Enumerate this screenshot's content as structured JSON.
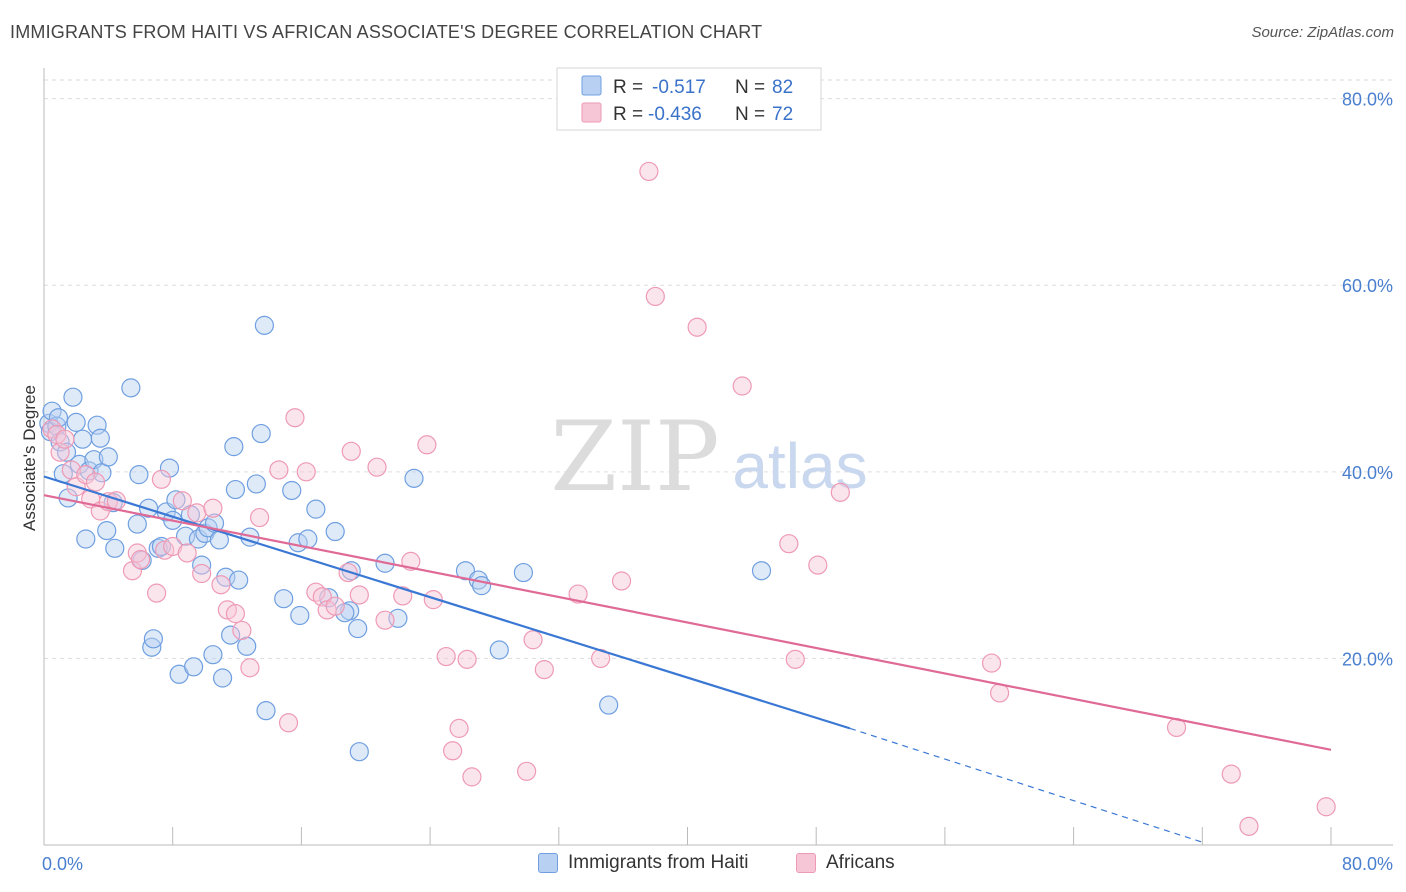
{
  "header": {
    "title": "IMMIGRANTS FROM HAITI VS AFRICAN ASSOCIATE'S DEGREE CORRELATION CHART",
    "source": "Source: ZipAtlas.com"
  },
  "watermark": {
    "zip": "ZIP",
    "atlas": "atlas"
  },
  "legend": {
    "rows": [
      {
        "r_label": "R =",
        "r_value": "-0.517",
        "n_label": "N =",
        "n_value": "82"
      },
      {
        "r_label": "R =",
        "r_value": "-0.436",
        "n_label": "N =",
        "n_value": "72"
      }
    ]
  },
  "bottom_legend": {
    "haiti": "Immigrants from Haiti",
    "africans": "Africans"
  },
  "colors": {
    "haiti_fill": "#b8d0f2",
    "haiti_stroke": "#6f9fe0",
    "haiti_line": "#3a78d4",
    "africans_fill": "#f7c6d6",
    "africans_stroke": "#ee9ab5",
    "africans_line": "#e06a96",
    "tick_label": "#4a7fcf",
    "grid": "#dddddd"
  },
  "chart_data": {
    "type": "scatter",
    "title": "IMMIGRANTS FROM HAITI VS AFRICAN ASSOCIATE'S DEGREE CORRELATION CHART",
    "xlabel": "",
    "ylabel": "Associate's Degree",
    "xlim": [
      0,
      80
    ],
    "ylim": [
      0,
      82
    ],
    "x_tick_labels": [
      "0.0%",
      "80.0%"
    ],
    "y_ticks": [
      20,
      40,
      60,
      80
    ],
    "y_tick_labels": [
      "20.0%",
      "40.0%",
      "60.0%",
      "80.0%"
    ],
    "grid": true,
    "legend_position": "top-center",
    "series": [
      {
        "name": "Immigrants from Haiti",
        "points": [
          [
            0.3,
            45.2
          ],
          [
            0.4,
            44.3
          ],
          [
            0.5,
            46.5
          ],
          [
            0.8,
            44.9
          ],
          [
            1.0,
            43.2
          ],
          [
            0.9,
            45.8
          ],
          [
            1.2,
            39.8
          ],
          [
            1.4,
            42.1
          ],
          [
            1.5,
            37.2
          ],
          [
            1.8,
            48.0
          ],
          [
            2.0,
            45.3
          ],
          [
            2.2,
            40.8
          ],
          [
            2.4,
            43.5
          ],
          [
            2.6,
            32.8
          ],
          [
            2.8,
            40.1
          ],
          [
            3.1,
            41.3
          ],
          [
            3.3,
            45.0
          ],
          [
            3.5,
            43.6
          ],
          [
            3.6,
            39.9
          ],
          [
            3.9,
            33.7
          ],
          [
            4.0,
            41.6
          ],
          [
            4.3,
            36.7
          ],
          [
            4.4,
            31.8
          ],
          [
            5.4,
            49.0
          ],
          [
            5.8,
            34.4
          ],
          [
            5.9,
            39.7
          ],
          [
            6.1,
            30.5
          ],
          [
            6.5,
            36.1
          ],
          [
            6.7,
            21.2
          ],
          [
            6.8,
            22.1
          ],
          [
            7.1,
            31.8
          ],
          [
            7.3,
            32.0
          ],
          [
            7.6,
            35.7
          ],
          [
            7.8,
            40.4
          ],
          [
            8.0,
            34.8
          ],
          [
            8.2,
            37.0
          ],
          [
            8.4,
            18.3
          ],
          [
            8.8,
            33.1
          ],
          [
            9.1,
            35.4
          ],
          [
            9.3,
            19.1
          ],
          [
            9.6,
            32.8
          ],
          [
            9.8,
            30.0
          ],
          [
            10.0,
            33.4
          ],
          [
            10.2,
            34.0
          ],
          [
            10.5,
            20.4
          ],
          [
            10.9,
            32.7
          ],
          [
            11.1,
            17.9
          ],
          [
            11.3,
            28.7
          ],
          [
            11.6,
            22.5
          ],
          [
            11.8,
            42.7
          ],
          [
            11.9,
            38.1
          ],
          [
            12.1,
            28.4
          ],
          [
            12.6,
            21.3
          ],
          [
            12.8,
            33.0
          ],
          [
            13.2,
            38.7
          ],
          [
            13.5,
            44.1
          ],
          [
            13.7,
            55.7
          ],
          [
            13.8,
            14.4
          ],
          [
            14.9,
            26.4
          ],
          [
            15.4,
            38.0
          ],
          [
            15.8,
            32.4
          ],
          [
            15.9,
            24.6
          ],
          [
            16.4,
            32.8
          ],
          [
            16.9,
            36.0
          ],
          [
            17.7,
            26.5
          ],
          [
            18.1,
            33.6
          ],
          [
            19.0,
            25.1
          ],
          [
            19.1,
            29.4
          ],
          [
            19.5,
            23.2
          ],
          [
            19.6,
            10.0
          ],
          [
            21.2,
            30.2
          ],
          [
            23.0,
            39.3
          ],
          [
            26.2,
            29.4
          ],
          [
            27.0,
            28.4
          ],
          [
            27.2,
            27.8
          ],
          [
            28.3,
            20.9
          ],
          [
            29.8,
            29.2
          ],
          [
            35.1,
            15.0
          ],
          [
            44.6,
            29.4
          ],
          [
            22.0,
            24.3
          ],
          [
            18.7,
            24.9
          ],
          [
            10.6,
            34.5
          ]
        ],
        "trend": {
          "x": [
            0,
            50.1
          ],
          "y": [
            39.5,
            12.5
          ]
        },
        "trend_dashed": {
          "x": [
            50.1,
            72.0
          ],
          "y": [
            12.5,
            0.3
          ]
        }
      },
      {
        "name": "Africans",
        "points": [
          [
            0.5,
            44.6
          ],
          [
            0.8,
            44.0
          ],
          [
            1.0,
            42.1
          ],
          [
            1.3,
            43.5
          ],
          [
            1.7,
            40.2
          ],
          [
            2.0,
            38.4
          ],
          [
            2.6,
            39.7
          ],
          [
            2.9,
            37.1
          ],
          [
            3.2,
            38.9
          ],
          [
            3.5,
            35.8
          ],
          [
            4.0,
            36.8
          ],
          [
            4.5,
            36.9
          ],
          [
            5.5,
            29.4
          ],
          [
            5.8,
            31.3
          ],
          [
            6.0,
            30.6
          ],
          [
            7.0,
            27.0
          ],
          [
            7.3,
            39.2
          ],
          [
            7.5,
            31.6
          ],
          [
            8.0,
            32.0
          ],
          [
            8.6,
            36.9
          ],
          [
            8.9,
            31.3
          ],
          [
            9.5,
            35.6
          ],
          [
            9.8,
            29.1
          ],
          [
            10.5,
            36.1
          ],
          [
            11.0,
            27.9
          ],
          [
            11.4,
            25.2
          ],
          [
            11.9,
            24.8
          ],
          [
            12.3,
            23.0
          ],
          [
            12.8,
            19.0
          ],
          [
            13.4,
            35.1
          ],
          [
            14.6,
            40.2
          ],
          [
            15.2,
            13.1
          ],
          [
            15.6,
            45.8
          ],
          [
            16.3,
            40.0
          ],
          [
            16.9,
            27.1
          ],
          [
            17.3,
            26.6
          ],
          [
            17.6,
            25.2
          ],
          [
            18.1,
            25.6
          ],
          [
            18.9,
            29.2
          ],
          [
            19.1,
            42.2
          ],
          [
            19.6,
            26.8
          ],
          [
            20.7,
            40.5
          ],
          [
            21.2,
            24.1
          ],
          [
            22.3,
            26.7
          ],
          [
            22.8,
            30.4
          ],
          [
            23.8,
            42.9
          ],
          [
            24.2,
            26.3
          ],
          [
            25.0,
            20.2
          ],
          [
            25.4,
            10.1
          ],
          [
            25.8,
            12.5
          ],
          [
            26.3,
            19.9
          ],
          [
            26.6,
            7.3
          ],
          [
            30.0,
            7.9
          ],
          [
            30.4,
            22.0
          ],
          [
            31.1,
            18.8
          ],
          [
            33.2,
            26.9
          ],
          [
            34.6,
            20.0
          ],
          [
            35.9,
            28.3
          ],
          [
            37.6,
            72.2
          ],
          [
            38.0,
            58.8
          ],
          [
            40.6,
            55.5
          ],
          [
            43.4,
            49.2
          ],
          [
            46.3,
            32.3
          ],
          [
            46.7,
            19.9
          ],
          [
            48.1,
            30.0
          ],
          [
            49.5,
            37.8
          ],
          [
            58.9,
            19.5
          ],
          [
            59.4,
            16.3
          ],
          [
            70.4,
            12.6
          ],
          [
            73.8,
            7.6
          ],
          [
            74.9,
            2.0
          ],
          [
            79.7,
            4.1
          ]
        ],
        "trend": {
          "x": [
            0,
            80
          ],
          "y": [
            37.5,
            10.2
          ]
        }
      }
    ]
  }
}
